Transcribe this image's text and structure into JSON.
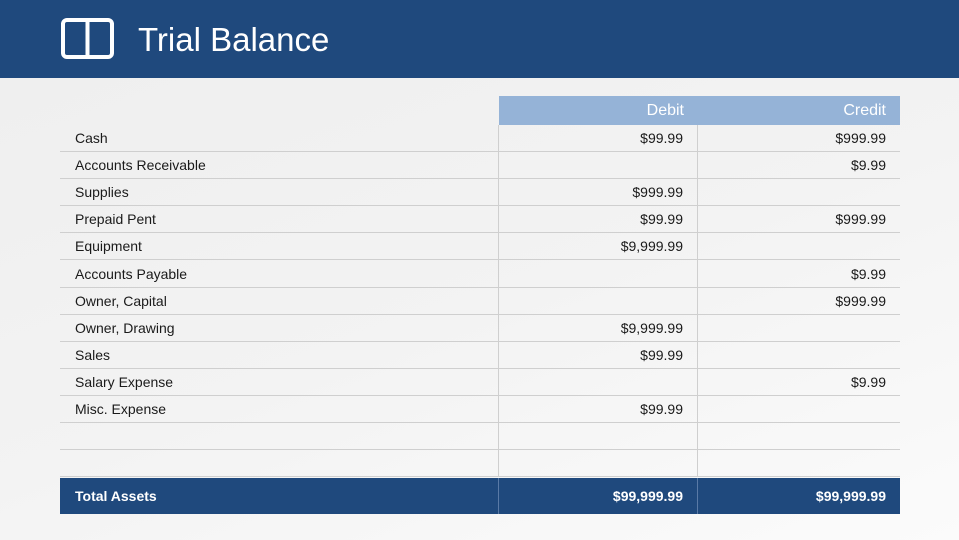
{
  "header": {
    "title": "Trial Balance",
    "icon": "two-column-book-icon",
    "background": "#1f497d"
  },
  "table": {
    "columns": [
      "Debit",
      "Credit"
    ],
    "header_color": "#95b3d7",
    "rows": [
      {
        "account": "Cash",
        "debit": "$99.99",
        "credit": "$999.99"
      },
      {
        "account": "Accounts Receivable",
        "debit": "",
        "credit": "$9.99"
      },
      {
        "account": "Supplies",
        "debit": "$999.99",
        "credit": ""
      },
      {
        "account": "Prepaid Pent",
        "debit": "$99.99",
        "credit": "$999.99"
      },
      {
        "account": "Equipment",
        "debit": "$9,999.99",
        "credit": ""
      },
      {
        "account": "Accounts Payable",
        "debit": "",
        "credit": "$9.99"
      },
      {
        "account": "Owner, Capital",
        "debit": "",
        "credit": "$999.99"
      },
      {
        "account": "Owner, Drawing",
        "debit": "$9,999.99",
        "credit": ""
      },
      {
        "account": "Sales",
        "debit": "$99.99",
        "credit": ""
      },
      {
        "account": "Salary Expense",
        "debit": "",
        "credit": "$9.99"
      },
      {
        "account": "Misc. Expense",
        "debit": "$99.99",
        "credit": ""
      },
      {
        "account": "",
        "debit": "",
        "credit": ""
      },
      {
        "account": "",
        "debit": "",
        "credit": ""
      }
    ],
    "total": {
      "label": "Total Assets",
      "debit": "$99,999.99",
      "credit": "$99,999.99"
    }
  }
}
